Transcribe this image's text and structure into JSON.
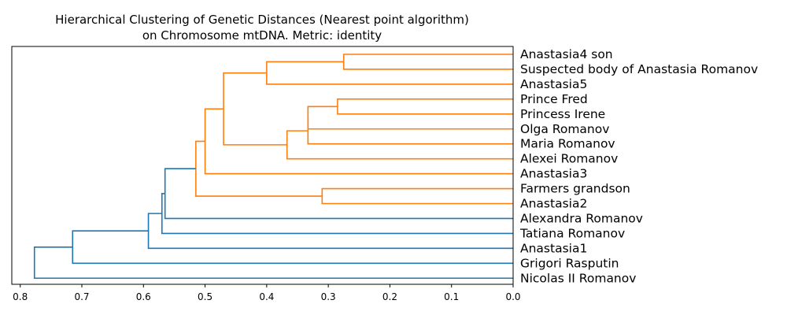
{
  "chart_data": {
    "type": "dendrogram",
    "orientation": "left",
    "title": "Hierarchical Clustering of Genetic Distances (Nearest point algorithm)",
    "subtitle": "on Chromosome mtDNA. Metric: identity",
    "xlabel": "",
    "ylabel": "",
    "xlim": [
      0.8137,
      0.0
    ],
    "x_ticks": [
      0.8,
      0.7,
      0.6,
      0.5,
      0.4,
      0.3,
      0.2,
      0.1,
      0.0
    ],
    "x_tick_labels": [
      "0.8",
      "0.7",
      "0.6",
      "0.5",
      "0.4",
      "0.3",
      "0.2",
      "0.1",
      "0.0"
    ],
    "grid": false,
    "colors": {
      "above_threshold": "#1f77b4",
      "cluster": "#ff7f0e",
      "axes": "#000000"
    },
    "leaves": [
      "Anastasia4 son",
      "Suspected body of Anastasia Romanov",
      "Anastasia5",
      "Prince Fred",
      "Princess Irene",
      "Olga Romanov",
      "Maria Romanov",
      "Alexei Romanov",
      "Anastasia3",
      "Farmers grandson",
      "Anastasia2",
      "Alexandra Romanov",
      "Tatiana Romanov",
      "Anastasia1",
      "Grigori Rasputin",
      "Nicolas II Romanov"
    ],
    "merges": [
      {
        "id": "n1",
        "children": [
          "Anastasia4 son",
          "Suspected body of Anastasia Romanov"
        ],
        "height": 0.275,
        "color": "#ff7f0e"
      },
      {
        "id": "n2",
        "children": [
          "n1",
          "Anastasia5"
        ],
        "height": 0.4,
        "color": "#ff7f0e"
      },
      {
        "id": "n3",
        "children": [
          "Prince Fred",
          "Princess Irene"
        ],
        "height": 0.285,
        "color": "#ff7f0e"
      },
      {
        "id": "n4",
        "children": [
          "n3",
          "Olga Romanov"
        ],
        "height": 0.333,
        "color": "#ff7f0e"
      },
      {
        "id": "n5",
        "children": [
          "n4",
          "Maria Romanov"
        ],
        "height": 0.333,
        "color": "#ff7f0e"
      },
      {
        "id": "n6",
        "children": [
          "n5",
          "Alexei Romanov"
        ],
        "height": 0.367,
        "color": "#ff7f0e"
      },
      {
        "id": "n7",
        "children": [
          "n2",
          "n6"
        ],
        "height": 0.47,
        "color": "#ff7f0e"
      },
      {
        "id": "n8",
        "children": [
          "n7",
          "Anastasia3"
        ],
        "height": 0.5,
        "color": "#ff7f0e"
      },
      {
        "id": "n9",
        "children": [
          "Farmers grandson",
          "Anastasia2"
        ],
        "height": 0.31,
        "color": "#ff7f0e"
      },
      {
        "id": "n10",
        "children": [
          "n8",
          "n9"
        ],
        "height": 0.515,
        "color": "#ff7f0e"
      },
      {
        "id": "n11",
        "children": [
          "n10",
          "Alexandra Romanov"
        ],
        "height": 0.565,
        "color": "#1f77b4"
      },
      {
        "id": "n12",
        "children": [
          "n11",
          "Tatiana Romanov"
        ],
        "height": 0.57,
        "color": "#1f77b4"
      },
      {
        "id": "n13",
        "children": [
          "n12",
          "Anastasia1"
        ],
        "height": 0.592,
        "color": "#1f77b4"
      },
      {
        "id": "n14",
        "children": [
          "n13",
          "Grigori Rasputin"
        ],
        "height": 0.715,
        "color": "#1f77b4"
      },
      {
        "id": "n15",
        "children": [
          "n14",
          "Nicolas II Romanov"
        ],
        "height": 0.777,
        "color": "#1f77b4"
      }
    ]
  }
}
